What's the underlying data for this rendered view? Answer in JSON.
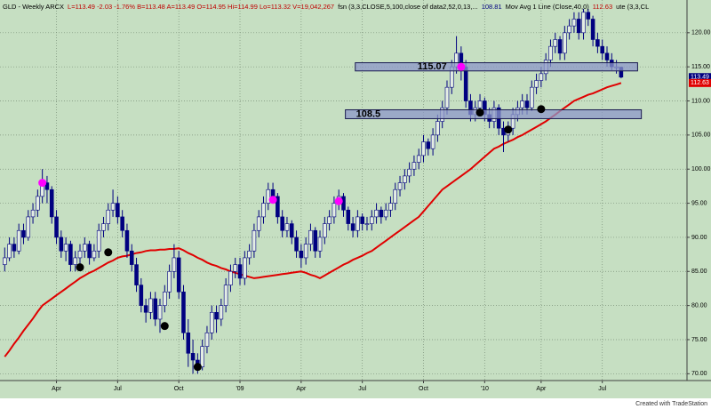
{
  "chart_data": {
    "type": "candlestick",
    "header": [
      {
        "text": "GLD - Weekly  ARCX",
        "color": "#000000"
      },
      {
        "text": "L=113.49 -2.03 -1.76% B=113.48 A=113.49 O=114.95 Hi=114.99 Lo=113.32 V=19,042,267",
        "color": "#c00000"
      },
      {
        "text": "fsn (3,3,CLOSE,5,100,close of data2,52,0,13,...",
        "color": "#000000"
      },
      {
        "text": "108.81",
        "color": "#000080"
      },
      {
        "text": "Mov Avg 1 Line (Close,40,0)",
        "color": "#000000"
      },
      {
        "text": "112.63",
        "color": "#c00000"
      },
      {
        "text": "ute (3,3,CL",
        "color": "#000000"
      }
    ],
    "footer": "Created with TradeStation",
    "up_color": "#e4eee4",
    "down_color": "#000080",
    "ma_color": "#e00000",
    "background": "#c6dfc2",
    "grid": true,
    "xlim": [
      -1,
      145
    ],
    "ylim": [
      69,
      124.8
    ],
    "yticks": [
      {
        "value": 70,
        "label": "70.00"
      },
      {
        "value": 75,
        "label": "75.00"
      },
      {
        "value": 80,
        "label": "80.00"
      },
      {
        "value": 85,
        "label": "85.00"
      },
      {
        "value": 90,
        "label": "90.00"
      },
      {
        "value": 95,
        "label": "95.00"
      },
      {
        "value": 100,
        "label": "100.00"
      },
      {
        "value": 105,
        "label": "105.00"
      },
      {
        "value": 110,
        "label": "110.00"
      },
      {
        "value": 115,
        "label": "115.00"
      },
      {
        "value": 120,
        "label": "120.00"
      }
    ],
    "xticks": [
      {
        "value": 11,
        "label": "Apr"
      },
      {
        "value": 24,
        "label": "Jul"
      },
      {
        "value": 37,
        "label": "Oct"
      },
      {
        "value": 50,
        "label": "'09"
      },
      {
        "value": 63,
        "label": "Apr"
      },
      {
        "value": 76,
        "label": "Jul"
      },
      {
        "value": 89,
        "label": "Oct"
      },
      {
        "value": 102,
        "label": "'10"
      },
      {
        "value": 114,
        "label": "Apr"
      },
      {
        "value": 127,
        "label": "Jul"
      }
    ],
    "ohlc": [
      [
        86,
        88.5,
        85,
        87
      ],
      [
        87,
        90,
        86.5,
        89
      ],
      [
        89,
        90,
        87,
        88
      ],
      [
        88,
        92,
        87.5,
        91
      ],
      [
        91,
        92,
        89,
        90
      ],
      [
        90,
        94,
        89.5,
        93
      ],
      [
        93,
        95,
        92,
        94
      ],
      [
        94,
        97,
        93,
        96
      ],
      [
        96,
        100,
        95,
        98
      ],
      [
        98,
        99,
        95,
        97
      ],
      [
        97,
        97.5,
        92,
        93
      ],
      [
        93,
        94,
        89,
        90
      ],
      [
        90,
        91,
        87,
        88
      ],
      [
        88,
        90,
        86.5,
        89
      ],
      [
        89,
        89.5,
        85,
        86
      ],
      [
        86,
        88,
        85,
        87
      ],
      [
        87,
        89,
        86,
        88
      ],
      [
        88,
        90,
        87,
        89
      ],
      [
        89,
        89.5,
        86,
        87
      ],
      [
        87,
        89,
        86.5,
        88
      ],
      [
        88,
        92,
        87,
        91
      ],
      [
        91,
        93,
        90,
        92
      ],
      [
        92,
        95,
        91,
        94
      ],
      [
        94,
        97,
        93,
        95
      ],
      [
        95,
        96,
        92,
        93
      ],
      [
        93,
        94,
        90,
        91
      ],
      [
        91,
        92,
        87,
        88
      ],
      [
        88,
        89,
        85,
        86
      ],
      [
        86,
        87,
        82,
        83
      ],
      [
        83,
        84,
        79,
        80
      ],
      [
        80,
        81,
        77.5,
        79
      ],
      [
        79,
        82,
        78,
        81
      ],
      [
        81,
        82,
        77,
        78
      ],
      [
        78,
        81,
        76,
        80
      ],
      [
        80,
        83,
        79,
        82
      ],
      [
        82,
        86,
        81,
        85
      ],
      [
        85,
        89,
        84,
        87
      ],
      [
        87,
        88,
        81,
        82
      ],
      [
        82,
        83,
        75,
        76
      ],
      [
        76,
        78,
        71,
        73
      ],
      [
        73,
        75,
        70,
        72
      ],
      [
        72,
        73,
        70,
        71
      ],
      [
        71,
        75,
        70.5,
        74
      ],
      [
        74,
        77,
        73,
        76
      ],
      [
        76,
        80,
        75,
        79
      ],
      [
        79,
        80,
        76,
        78
      ],
      [
        78,
        81,
        77,
        80
      ],
      [
        80,
        84,
        79,
        83
      ],
      [
        83,
        86,
        82,
        85
      ],
      [
        85,
        87,
        84,
        86
      ],
      [
        86,
        87,
        83,
        84
      ],
      [
        84,
        88,
        83,
        87
      ],
      [
        87,
        89,
        86,
        88
      ],
      [
        88,
        92,
        87,
        91
      ],
      [
        91,
        94,
        90,
        93
      ],
      [
        93,
        96,
        92,
        95
      ],
      [
        95,
        98,
        94,
        97
      ],
      [
        97,
        98,
        95,
        96
      ],
      [
        96,
        96.5,
        92,
        93
      ],
      [
        93,
        94,
        90,
        91
      ],
      [
        91,
        93,
        90,
        92
      ],
      [
        92,
        92.5,
        89,
        90
      ],
      [
        90,
        91,
        87,
        88
      ],
      [
        88,
        89,
        85.5,
        87
      ],
      [
        87,
        90,
        86,
        89
      ],
      [
        89,
        92,
        88,
        91
      ],
      [
        91,
        91.5,
        87,
        88
      ],
      [
        88,
        91,
        87,
        90
      ],
      [
        90,
        93,
        89,
        92
      ],
      [
        92,
        94,
        91,
        93
      ],
      [
        93,
        96,
        92,
        95
      ],
      [
        95,
        97,
        94,
        96
      ],
      [
        96,
        96.5,
        93,
        94
      ],
      [
        94,
        94.5,
        91,
        92
      ],
      [
        92,
        93,
        90,
        91
      ],
      [
        91,
        94,
        90,
        93
      ],
      [
        93,
        93.5,
        91,
        92
      ],
      [
        92,
        93,
        91,
        92
      ],
      [
        92,
        94,
        91,
        93
      ],
      [
        93,
        95,
        92,
        94
      ],
      [
        94,
        94.5,
        92,
        93
      ],
      [
        93,
        95,
        92.5,
        94
      ],
      [
        94,
        96,
        93,
        95
      ],
      [
        95,
        98,
        94,
        97
      ],
      [
        97,
        99,
        96,
        98
      ],
      [
        98,
        100,
        97,
        99
      ],
      [
        99,
        101,
        98,
        100
      ],
      [
        100,
        102,
        99,
        101
      ],
      [
        101,
        103,
        100,
        102
      ],
      [
        102,
        105,
        101,
        104
      ],
      [
        104,
        104.5,
        102,
        103
      ],
      [
        103,
        106,
        102,
        105
      ],
      [
        105,
        108,
        104,
        107
      ],
      [
        107,
        110,
        106,
        109
      ],
      [
        109,
        113,
        108,
        112
      ],
      [
        112,
        116,
        111,
        115
      ],
      [
        115,
        119.5,
        114,
        117
      ],
      [
        117,
        118,
        113,
        115
      ],
      [
        115,
        116,
        109,
        110
      ],
      [
        110,
        111,
        107,
        108
      ],
      [
        108,
        110,
        107,
        109
      ],
      [
        109,
        111,
        108,
        110
      ],
      [
        110,
        110.5,
        107,
        108
      ],
      [
        108,
        109,
        106,
        107
      ],
      [
        107,
        110,
        106,
        109
      ],
      [
        109,
        109.5,
        105,
        106
      ],
      [
        106,
        107,
        102.5,
        105
      ],
      [
        105,
        107,
        104,
        106
      ],
      [
        106,
        109,
        105,
        108
      ],
      [
        108,
        110,
        107,
        109
      ],
      [
        109,
        111,
        108,
        110
      ],
      [
        110,
        111,
        108,
        109
      ],
      [
        109,
        113,
        108.5,
        112
      ],
      [
        112,
        114,
        111,
        113
      ],
      [
        113,
        115,
        112,
        114
      ],
      [
        114,
        117,
        113,
        116
      ],
      [
        116,
        119,
        115,
        118
      ],
      [
        118,
        120,
        117,
        119
      ],
      [
        119,
        119.5,
        116,
        117
      ],
      [
        117,
        121,
        116,
        120
      ],
      [
        120,
        122,
        119,
        121
      ],
      [
        121,
        123,
        120,
        122
      ],
      [
        122,
        123,
        119,
        120
      ],
      [
        120,
        123.5,
        119,
        123
      ],
      [
        123,
        123.5,
        121,
        122
      ],
      [
        122,
        122.5,
        118,
        119
      ],
      [
        119,
        120,
        117,
        118
      ],
      [
        118,
        119,
        116,
        117
      ],
      [
        117,
        118,
        115,
        116
      ],
      [
        116,
        117,
        114.5,
        115
      ],
      [
        115,
        116,
        114,
        115
      ],
      [
        114.95,
        114.99,
        113.32,
        113.49
      ]
    ],
    "moving_average": [
      72.5,
      73.4,
      74.4,
      75.3,
      76.3,
      77.2,
      78.1,
      79.1,
      80,
      80.5,
      81,
      81.5,
      82,
      82.5,
      83,
      83.5,
      84,
      84.4,
      84.8,
      85.1,
      85.5,
      85.9,
      86.3,
      86.6,
      87,
      87.2,
      87.3,
      87.5,
      87.7,
      87.8,
      88,
      88.1,
      88.1,
      88.2,
      88.2,
      88.3,
      88.3,
      88.4,
      88.1,
      87.7,
      87.4,
      87,
      86.7,
      86.3,
      86,
      85.8,
      85.5,
      85.3,
      85,
      84.8,
      84.6,
      84.4,
      84.2,
      84,
      84.1,
      84.2,
      84.3,
      84.4,
      84.5,
      84.6,
      84.7,
      84.8,
      84.9,
      85,
      84.8,
      84.5,
      84.3,
      84,
      84.4,
      84.8,
      85.2,
      85.6,
      86,
      86.3,
      86.7,
      87,
      87.3,
      87.7,
      88,
      88.5,
      89,
      89.5,
      90,
      90.5,
      91,
      91.5,
      92,
      92.5,
      93,
      93.8,
      94.6,
      95.4,
      96.2,
      97,
      97.5,
      98,
      98.5,
      99,
      99.5,
      100,
      100.6,
      101.2,
      101.8,
      102.4,
      103,
      103.3,
      103.7,
      104,
      104.3,
      104.7,
      105,
      105.4,
      105.8,
      106.2,
      106.6,
      107,
      107.5,
      108,
      108.5,
      109,
      109.5,
      110,
      110.3,
      110.6,
      110.9,
      111.1,
      111.4,
      111.7,
      112,
      112.2,
      112.4,
      112.63
    ],
    "markers": [
      {
        "index": 8,
        "value": 98,
        "color": "#ff00ff"
      },
      {
        "index": 57,
        "value": 95.5,
        "color": "#ff00ff"
      },
      {
        "index": 71,
        "value": 95.3,
        "color": "#ff00ff"
      },
      {
        "index": 97,
        "value": 115,
        "color": "#ff00ff"
      },
      {
        "index": 16,
        "value": 85.6,
        "color": "#000000"
      },
      {
        "index": 22,
        "value": 87.8,
        "color": "#000000"
      },
      {
        "index": 34,
        "value": 77,
        "color": "#000000"
      },
      {
        "index": 41,
        "value": 71,
        "color": "#000000"
      },
      {
        "index": 101,
        "value": 108.3,
        "color": "#000000"
      },
      {
        "index": 107,
        "value": 105.8,
        "color": "#000000"
      },
      {
        "index": 114,
        "value": 108.8,
        "color": "#000000"
      }
    ],
    "zones": [
      {
        "label": "115.07",
        "low": 114.4,
        "high": 115.6,
        "from": 74.5,
        "to": 134.5
      },
      {
        "label": "108.5",
        "low": 107.4,
        "high": 108.7,
        "from": 72.4,
        "to": 135.3
      }
    ],
    "last_price": {
      "value": 113.49,
      "color": "#000080"
    },
    "last_ma": {
      "value": 112.63,
      "color": "#e00000"
    }
  }
}
